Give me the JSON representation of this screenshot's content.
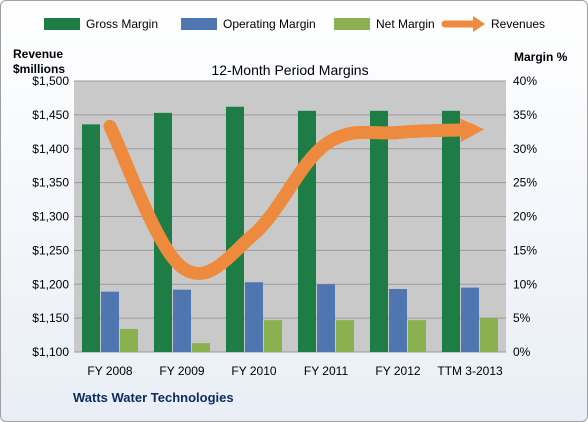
{
  "chart_data": {
    "type": "bar",
    "title": "12-Month Period Margins",
    "company": "Watts Water Technologies",
    "left_axis": {
      "label_line1": "Revenue",
      "label_line2": "$millions",
      "min": 1100,
      "max": 1500,
      "step": 50,
      "tick_labels": [
        "$1,100",
        "$1,150",
        "$1,200",
        "$1,250",
        "$1,300",
        "$1,350",
        "$1,400",
        "$1,450",
        "$1,500"
      ]
    },
    "right_axis": {
      "label": "Margin %",
      "min": 0,
      "max": 40,
      "step": 5,
      "tick_labels": [
        "0%",
        "5%",
        "10%",
        "15%",
        "20%",
        "25%",
        "30%",
        "35%",
        "40%"
      ]
    },
    "categories": [
      "FY 2008",
      "FY 2009",
      "FY 2010",
      "FY 2011",
      "FY 2012",
      "TTM 3-2013"
    ],
    "series": [
      {
        "name": "Gross Margin",
        "type": "bar",
        "axis": "right",
        "color": "#1e7d45",
        "values": [
          33.6,
          35.3,
          36.2,
          35.6,
          35.6,
          35.6
        ]
      },
      {
        "name": "Operating Margin",
        "type": "bar",
        "axis": "right",
        "color": "#4f76b0",
        "values": [
          8.9,
          9.2,
          10.3,
          10.0,
          9.3,
          9.5
        ]
      },
      {
        "name": "Net Margin",
        "type": "bar",
        "axis": "right",
        "color": "#8bb04f",
        "values": [
          3.4,
          1.3,
          4.7,
          4.7,
          4.7,
          5.0
        ]
      },
      {
        "name": "Revenues",
        "type": "line",
        "axis": "left",
        "color": "#ed8a3d",
        "values": [
          1433,
          1225,
          1274,
          1407,
          1424,
          1428
        ]
      }
    ],
    "grid": true,
    "legend": "top"
  }
}
